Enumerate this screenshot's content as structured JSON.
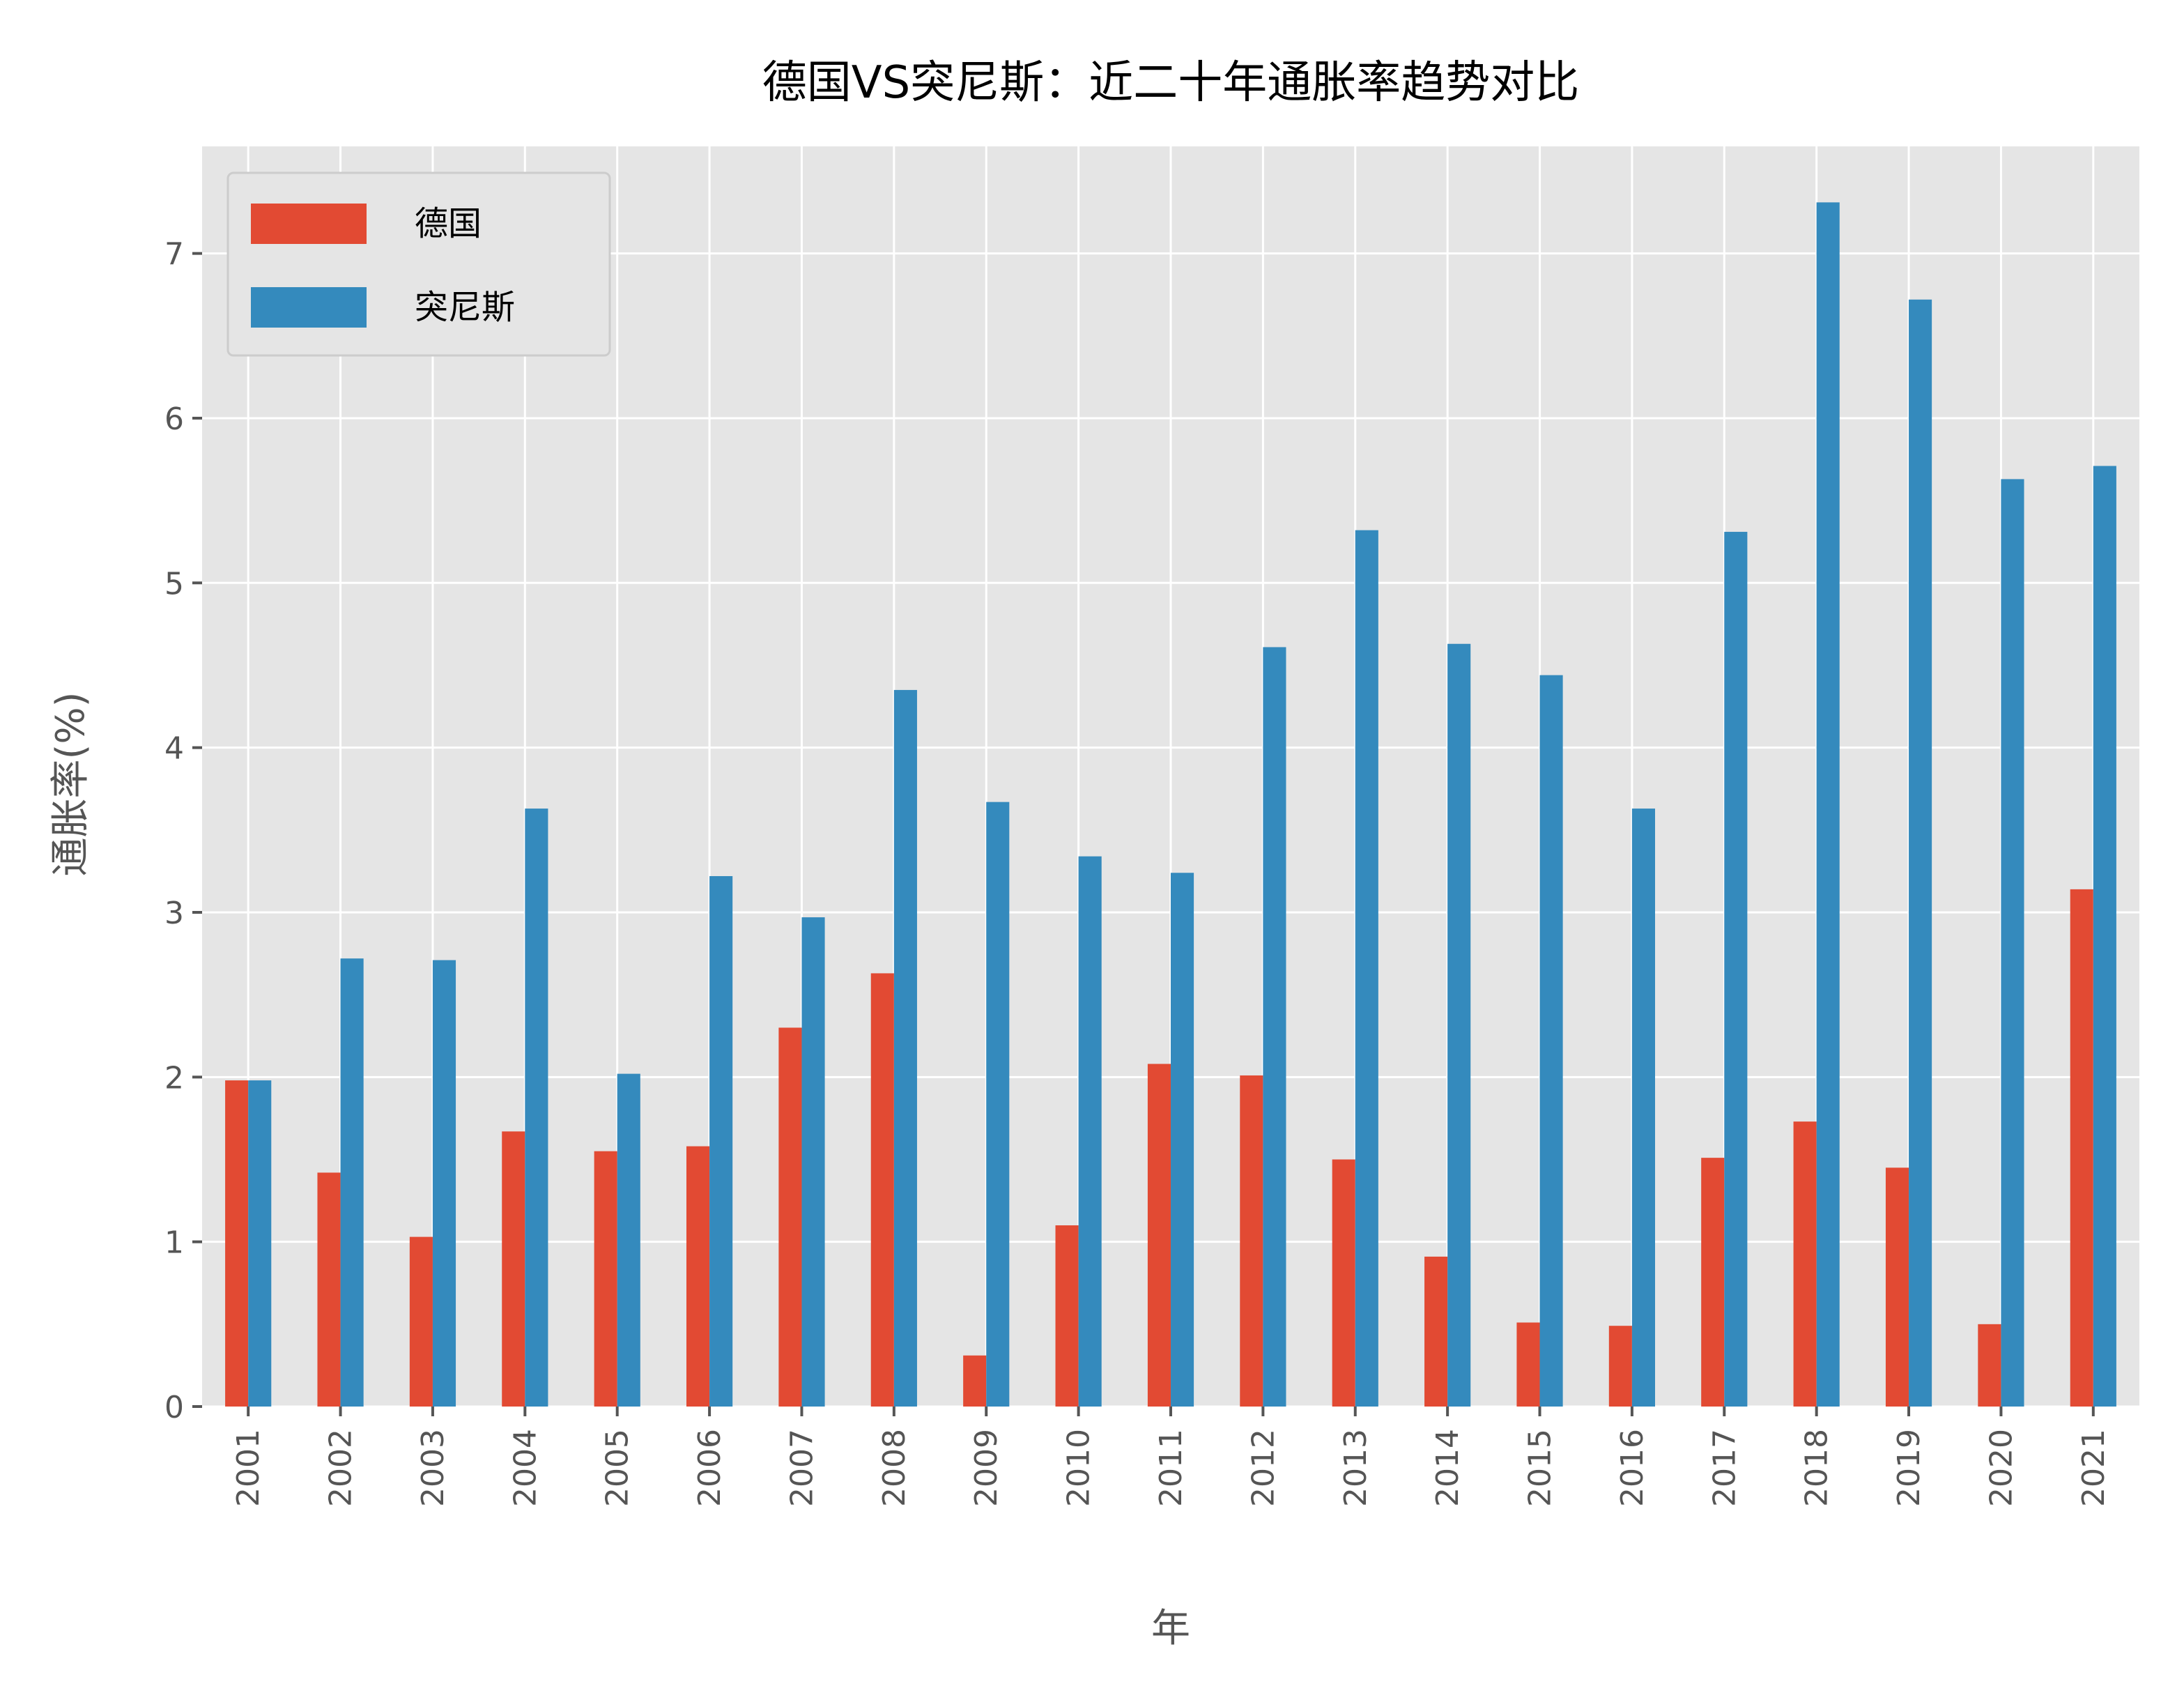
{
  "chart_data": {
    "type": "bar",
    "title": "德国VS突尼斯：近二十年通胀率趋势对比",
    "xlabel": "年",
    "ylabel": "通胀率(%)",
    "categories": [
      "2001",
      "2002",
      "2003",
      "2004",
      "2005",
      "2006",
      "2007",
      "2008",
      "2009",
      "2010",
      "2011",
      "2012",
      "2013",
      "2014",
      "2015",
      "2016",
      "2017",
      "2018",
      "2019",
      "2020",
      "2021"
    ],
    "series": [
      {
        "name": "德国",
        "color": "#E24A33",
        "values": [
          1.98,
          1.42,
          1.03,
          1.67,
          1.55,
          1.58,
          2.3,
          2.63,
          0.31,
          1.1,
          2.08,
          2.01,
          1.5,
          0.91,
          0.51,
          0.49,
          1.51,
          1.73,
          1.45,
          0.5,
          3.14
        ]
      },
      {
        "name": "突尼斯",
        "color": "#348ABD",
        "values": [
          1.98,
          2.72,
          2.71,
          3.63,
          2.02,
          3.22,
          2.97,
          4.35,
          3.67,
          3.34,
          3.24,
          4.61,
          5.32,
          4.63,
          4.44,
          3.63,
          5.31,
          7.31,
          6.72,
          5.63,
          5.71
        ]
      }
    ],
    "ylim": [
      0,
      7.65
    ],
    "yticks": [
      0,
      1,
      2,
      3,
      4,
      5,
      6,
      7
    ],
    "grid": true,
    "legend_position": "top-left",
    "style": "ggplot",
    "plot_background": "#E5E5E5",
    "grid_color": "#FFFFFF"
  }
}
